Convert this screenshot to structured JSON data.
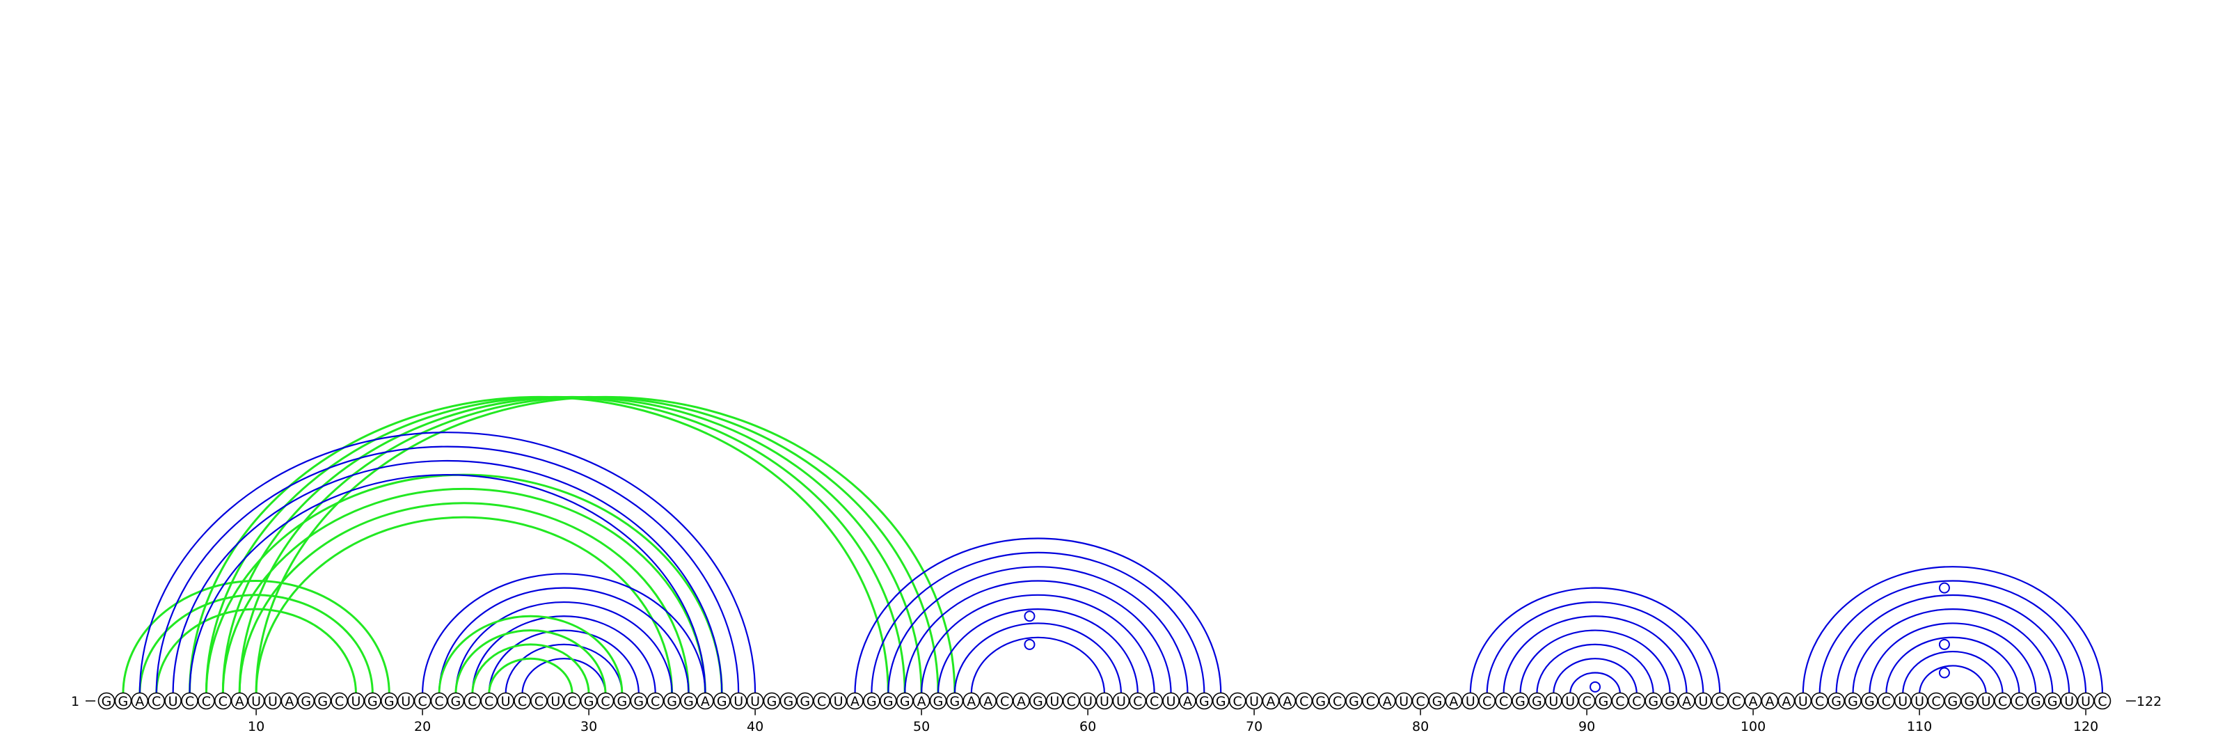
{
  "sequence": "GGACUCCCAUUAGGCUGGUCCGCCUCCUCGCGGCGGAGUUGGGCUAGGGAGGAACAGUCUUUCCUAGGCUAACGCGCAUCGAUCCGGUUCGCCGGAUCCAAAUCGGGCUUCGGUCCGGUUC",
  "start_label": "1",
  "end_label": "122",
  "ticks": [
    "10",
    "20",
    "30",
    "40",
    "50",
    "60",
    "70",
    "80",
    "90",
    "100",
    "110",
    "120"
  ],
  "colors": {
    "blue": "#0000dd",
    "green": "#22e822",
    "stroke": "#000000"
  },
  "arcs": [
    {
      "color": "green",
      "pairs": [
        [
          2,
          18
        ],
        [
          3,
          17
        ],
        [
          4,
          16
        ]
      ]
    },
    {
      "color": "green",
      "pairs": [
        [
          6,
          48
        ],
        [
          7,
          49
        ],
        [
          8,
          50
        ],
        [
          9,
          51
        ],
        [
          10,
          52
        ]
      ]
    },
    {
      "color": "green",
      "pairs": [
        [
          7,
          38
        ],
        [
          8,
          37
        ],
        [
          9,
          36
        ],
        [
          10,
          35
        ]
      ]
    },
    {
      "color": "blue",
      "pairs": [
        [
          3,
          40
        ],
        [
          4,
          39
        ],
        [
          5,
          38
        ],
        [
          6,
          37
        ]
      ]
    },
    {
      "color": "blue",
      "pairs": [
        [
          20,
          37
        ],
        [
          21,
          36
        ],
        [
          22,
          35
        ],
        [
          23,
          34
        ],
        [
          24,
          33
        ],
        [
          25,
          32
        ],
        [
          26,
          31
        ]
      ]
    },
    {
      "color": "green",
      "pairs": [
        [
          21,
          32
        ],
        [
          22,
          31
        ],
        [
          23,
          30
        ],
        [
          24,
          29
        ]
      ]
    },
    {
      "color": "blue",
      "pairs": [
        [
          46,
          68
        ],
        [
          47,
          67
        ],
        [
          48,
          66
        ],
        [
          49,
          65
        ],
        [
          50,
          64
        ],
        [
          51,
          63
        ],
        [
          52,
          62
        ],
        [
          53,
          61
        ]
      ]
    },
    {
      "color": "blue",
      "pairs": [
        [
          83,
          98
        ],
        [
          84,
          97
        ],
        [
          85,
          96
        ],
        [
          86,
          95
        ],
        [
          87,
          94
        ],
        [
          88,
          93
        ],
        [
          89,
          92
        ]
      ]
    },
    {
      "color": "blue",
      "pairs": [
        [
          103,
          121
        ],
        [
          104,
          120
        ],
        [
          105,
          119
        ],
        [
          106,
          118
        ],
        [
          107,
          117
        ],
        [
          108,
          116
        ],
        [
          109,
          115
        ],
        [
          110,
          114
        ]
      ]
    }
  ],
  "mismatches": [
    {
      "color": "blue",
      "center": 56.5,
      "span": 11
    },
    {
      "color": "blue",
      "center": 56.5,
      "span": 7
    },
    {
      "color": "blue",
      "center": 90.5,
      "span": 1
    },
    {
      "color": "blue",
      "center": 111.5,
      "span": 15
    },
    {
      "color": "blue",
      "center": 111.5,
      "span": 7
    },
    {
      "color": "blue",
      "center": 111.5,
      "span": 3
    }
  ]
}
